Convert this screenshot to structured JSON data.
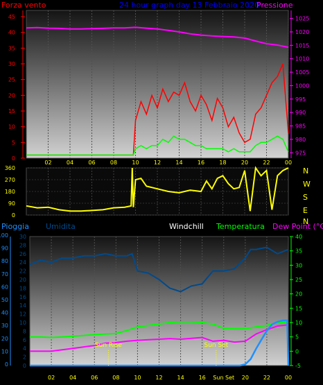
{
  "colors": {
    "wind": "#ff0000",
    "gust_avg": "#00ff00",
    "pressure": "#ff00ff",
    "direction": "#ffff00",
    "humidity": "#004a8c",
    "rain": "#1e90ff",
    "temperature": "#00ff00",
    "dewpoint": "#ff00ff",
    "windchill": "#c0c0ff",
    "axis_yellow": "#ffff00",
    "title_blue": "#0000ff"
  },
  "chart_data": [
    {
      "type": "line",
      "title": "24 hour graph day 13 Febbraio 2020",
      "left_axis_label": "Forza vento",
      "right_axis_label": "Pressione",
      "x_ticks": [
        "02",
        "04",
        "06",
        "08",
        "10",
        "12",
        "14",
        "16",
        "18",
        "20",
        "22",
        "00"
      ],
      "left_ticks": [
        "0",
        "5",
        "10",
        "15",
        "20",
        "25",
        "30",
        "35",
        "40",
        "45"
      ],
      "right_ticks": [
        "975",
        "980",
        "985",
        "990",
        "995",
        "1000",
        "1005",
        "1010",
        "1015",
        "1020",
        "1025"
      ],
      "ylim_left": [
        0,
        47
      ],
      "ylim_right": [
        973,
        1028
      ],
      "series": [
        {
          "key": "wind",
          "hours": [
            0,
            9.8,
            10,
            10.5,
            11,
            11.5,
            12,
            12.5,
            13,
            13.5,
            14,
            14.5,
            15,
            15.5,
            16,
            16.5,
            17,
            17.5,
            18,
            18.5,
            19,
            19.5,
            20,
            20.5,
            21,
            21.5,
            22,
            22.5,
            23,
            23.5,
            24
          ],
          "values": [
            1,
            1,
            12,
            18,
            14,
            20,
            16,
            22,
            18,
            21,
            20,
            24,
            18,
            15,
            20,
            17,
            12,
            19,
            16,
            10,
            13,
            8,
            5,
            6,
            14,
            16,
            20,
            24,
            26,
            30,
            8
          ]
        },
        {
          "key": "gust_avg",
          "hours": [
            0,
            9.8,
            10,
            10.5,
            11,
            11.5,
            12,
            12.5,
            13,
            13.5,
            14,
            14.5,
            15,
            15.5,
            16,
            16.5,
            17,
            17.5,
            18,
            18.5,
            19,
            19.5,
            20,
            20.5,
            21,
            21.5,
            22,
            22.5,
            23,
            23.5,
            24
          ],
          "values": [
            1,
            1,
            3,
            4,
            3,
            4,
            4,
            6,
            5,
            7,
            6,
            6,
            5,
            4,
            4,
            3,
            3,
            3,
            3,
            2,
            3,
            2,
            2,
            2,
            4,
            5,
            5,
            6,
            7,
            6,
            2
          ]
        },
        {
          "key": "pressure",
          "hours": [
            0,
            1,
            2,
            3,
            4,
            5,
            6,
            7,
            8,
            9,
            10,
            11,
            12,
            13,
            14,
            15,
            16,
            17,
            18,
            19,
            20,
            21,
            22,
            23,
            24
          ],
          "values": [
            1021.5,
            1021.6,
            1021.4,
            1021.3,
            1021.1,
            1021.1,
            1021.2,
            1021.3,
            1021.5,
            1021.5,
            1021.7,
            1021.4,
            1021.1,
            1020.6,
            1020.0,
            1019.3,
            1018.8,
            1018.5,
            1018.3,
            1018.1,
            1017.7,
            1016.6,
            1015.6,
            1015.1,
            1014.3
          ]
        }
      ]
    },
    {
      "type": "line",
      "title": "",
      "x_ticks": [],
      "left_ticks": [
        "0",
        "90",
        "180",
        "270",
        "360"
      ],
      "right_ticks": [
        "N",
        "W",
        "S",
        "E",
        "N"
      ],
      "ylim_left": [
        0,
        360
      ],
      "series": [
        {
          "key": "direction",
          "hours": [
            0,
            1,
            2,
            3,
            4,
            5,
            6,
            7,
            8,
            9,
            9.6,
            9.7,
            9.8,
            10,
            10.5,
            11,
            12,
            13,
            14,
            15,
            16,
            16.5,
            17,
            17.5,
            18,
            18.5,
            19,
            19.5,
            20,
            20.5,
            21,
            21.5,
            22,
            22.5,
            23,
            23.5,
            24
          ],
          "values": [
            70,
            55,
            60,
            40,
            30,
            30,
            35,
            40,
            55,
            60,
            70,
            360,
            60,
            270,
            280,
            220,
            200,
            180,
            170,
            190,
            180,
            260,
            200,
            280,
            300,
            240,
            200,
            210,
            340,
            30,
            360,
            300,
            340,
            40,
            300,
            340,
            360
          ]
        }
      ]
    },
    {
      "type": "line",
      "title": "",
      "labels": {
        "rain": "Pioggia",
        "humidity": "Umidita",
        "windchill": "Windchill",
        "temperature": "Temperatura",
        "dewpoint": "Dew Point (°C)"
      },
      "x_ticks": [
        "02",
        "04",
        "06",
        "08",
        "10",
        "12",
        "14",
        "16",
        "Sun Set",
        "20",
        "22",
        "00"
      ],
      "annotations": [
        "Sun Rise",
        "Sun Set"
      ],
      "rain_ticks": [
        "0",
        "10",
        "20",
        "30",
        "40",
        "50",
        "60",
        "70",
        "80",
        "90",
        "100"
      ],
      "humidity_ticks": [
        "0",
        "2",
        "4",
        "6",
        "8",
        "10",
        "12",
        "14",
        "16",
        "18",
        "20",
        "22",
        "24",
        "26",
        "28",
        "30"
      ],
      "temp_ticks": [
        "-5",
        "0",
        "5",
        "10",
        "15",
        "20",
        "25",
        "30",
        "35",
        "40"
      ],
      "ylim_humidity": [
        0,
        30
      ],
      "ylim_temp": [
        -5,
        40
      ],
      "series": [
        {
          "key": "humidity",
          "hours": [
            0,
            1,
            2,
            3,
            4,
            5,
            6,
            7,
            8,
            9,
            9.5,
            10,
            11,
            12,
            13,
            14,
            15,
            16,
            17,
            18,
            19,
            20,
            20.5,
            21,
            22,
            23,
            24
          ],
          "values": [
            23.5,
            24.5,
            24,
            25,
            25,
            25.5,
            25.5,
            26,
            25.5,
            25.5,
            26,
            22,
            21.5,
            20,
            18,
            17.2,
            18.5,
            19,
            22,
            22,
            22.5,
            25,
            27,
            27,
            27.5,
            26,
            27
          ]
        },
        {
          "key": "temperature",
          "hours": [
            0,
            1,
            2,
            3,
            4,
            5,
            6,
            7,
            8,
            9,
            10,
            11,
            12,
            13,
            14,
            15,
            16,
            17,
            18,
            19,
            20,
            21,
            22,
            23,
            24
          ],
          "values": [
            5,
            5,
            4.8,
            5,
            5.2,
            5.5,
            5.8,
            6,
            6.2,
            7.2,
            8.5,
            9,
            9.5,
            10,
            9.8,
            9.8,
            10,
            9.5,
            8,
            7.8,
            7.8,
            8.5,
            9,
            10,
            10
          ]
        },
        {
          "key": "dewpoint",
          "hours": [
            0,
            1,
            2,
            3,
            4,
            5,
            6,
            7,
            8,
            9,
            10,
            11,
            12,
            13,
            14,
            15,
            16,
            17,
            18,
            19,
            20,
            21,
            22,
            23,
            24
          ],
          "values": [
            0,
            0,
            0,
            0.5,
            1,
            1.5,
            2,
            2.8,
            3,
            3.5,
            3.8,
            4,
            4.2,
            4.4,
            4.2,
            4.5,
            4.8,
            3.5,
            3.8,
            3.2,
            3.5,
            6,
            7.5,
            8.8,
            9.2
          ]
        },
        {
          "key": "rain",
          "hours": [
            0,
            19.5,
            20,
            20.5,
            21,
            21.5,
            22,
            22.5,
            23,
            23.5,
            23.9,
            24
          ],
          "values": [
            0,
            0,
            1,
            5,
            13,
            20,
            27,
            32,
            34,
            35,
            35,
            0
          ]
        }
      ]
    }
  ]
}
